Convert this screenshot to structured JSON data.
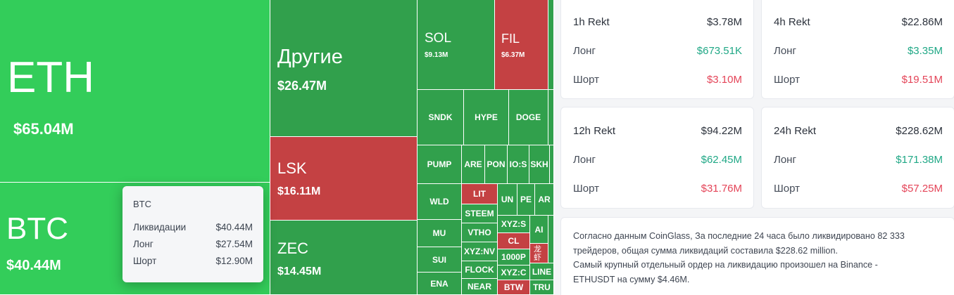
{
  "treemap": {
    "cells": [
      {
        "key": "eth",
        "symbol": "ETH",
        "value": "$65.04M"
      },
      {
        "key": "btc",
        "symbol": "BTC",
        "value": "$40.44M"
      },
      {
        "key": "other",
        "symbol": "Другие",
        "value": "$26.47M"
      },
      {
        "key": "lsk",
        "symbol": "LSK",
        "value": "$16.11M"
      },
      {
        "key": "zec",
        "symbol": "ZEC",
        "value": "$14.45M"
      },
      {
        "key": "sol",
        "symbol": "SOL",
        "value": "$9.13M"
      },
      {
        "key": "fil",
        "symbol": "FIL",
        "value": "$6.37M"
      },
      {
        "key": "sndk",
        "symbol": "SNDK"
      },
      {
        "key": "hype",
        "symbol": "HYPE"
      },
      {
        "key": "doge",
        "symbol": "DOGE"
      },
      {
        "key": "pump",
        "symbol": "PUMP"
      },
      {
        "key": "are",
        "symbol": "ARE"
      },
      {
        "key": "pon",
        "symbol": "PON"
      },
      {
        "key": "ios",
        "symbol": "IO:S"
      },
      {
        "key": "skh",
        "symbol": "SKH"
      },
      {
        "key": "wld",
        "symbol": "WLD"
      },
      {
        "key": "lit",
        "symbol": "LIT"
      },
      {
        "key": "un",
        "symbol": "UN"
      },
      {
        "key": "pe",
        "symbol": "PE"
      },
      {
        "key": "ar",
        "symbol": "AR"
      },
      {
        "key": "steem",
        "symbol": "STEEM"
      },
      {
        "key": "xyzs",
        "symbol": "XYZ:S"
      },
      {
        "key": "ai",
        "symbol": "AI"
      },
      {
        "key": "mu",
        "symbol": "MU"
      },
      {
        "key": "vtho",
        "symbol": "VTHO"
      },
      {
        "key": "cl",
        "symbol": "CL"
      },
      {
        "key": "xyznv",
        "symbol": "XYZ:NV"
      },
      {
        "key": "k1000p",
        "symbol": "1000P"
      },
      {
        "key": "cjk",
        "symbol": "龙虾"
      },
      {
        "key": "sui",
        "symbol": "SUI"
      },
      {
        "key": "flock",
        "symbol": "FLOCK"
      },
      {
        "key": "xyzc",
        "symbol": "XYZ:C"
      },
      {
        "key": "linea",
        "symbol": "LINE"
      },
      {
        "key": "ena",
        "symbol": "ENA"
      },
      {
        "key": "near",
        "symbol": "NEAR"
      },
      {
        "key": "btw",
        "symbol": "BTW"
      },
      {
        "key": "tru",
        "symbol": "TRU"
      }
    ]
  },
  "tooltip": {
    "title": "BTC",
    "rows": [
      {
        "label": "Ликвидации",
        "value": "$40.44M"
      },
      {
        "label": "Лонг",
        "value": "$27.54M"
      },
      {
        "label": "Шорт",
        "value": "$12.90M"
      }
    ]
  },
  "rekt": [
    {
      "title": "1h Rekt",
      "total": "$3.78M",
      "long_label": "Лонг",
      "long": "$673.51K",
      "short_label": "Шорт",
      "short": "$3.10M"
    },
    {
      "title": "4h Rekt",
      "total": "$22.86M",
      "long_label": "Лонг",
      "long": "$3.35M",
      "short_label": "Шорт",
      "short": "$19.51M"
    },
    {
      "title": "12h Rekt",
      "total": "$94.22M",
      "long_label": "Лонг",
      "long": "$62.45M",
      "short_label": "Шорт",
      "short": "$31.76M"
    },
    {
      "title": "24h Rekt",
      "total": "$228.62M",
      "long_label": "Лонг",
      "long": "$171.38M",
      "short_label": "Шорт",
      "short": "$57.25M"
    }
  ],
  "summary": {
    "line1": "Согласно данным CoinGlass, За последние 24 часа было ликвидировано 82 333",
    "line2": "трейдеров, общая сумма ликвидаций составила $228.62 million.",
    "line3": "Самый крупный отдельный ордер на ликвидацию произошел на Binance -",
    "line4": "ETHUSDT на сумму $4.46M."
  },
  "colors": {
    "liquidation_green": "#31a04c",
    "highlight_green": "#33cd5a",
    "liquidation_red": "#c44143",
    "long_text": "#20a886",
    "short_text": "#e44458"
  }
}
